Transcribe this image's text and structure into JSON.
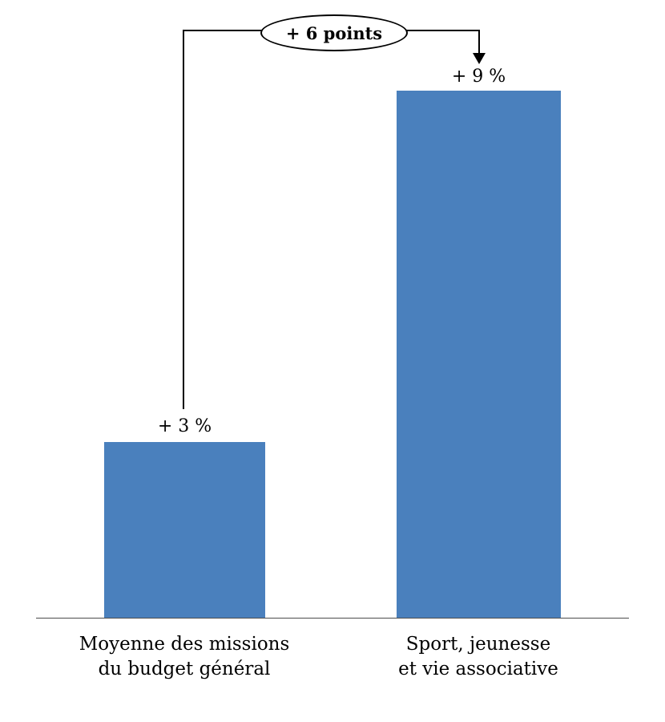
{
  "chart_data": {
    "type": "bar",
    "categories": [
      "Moyenne des missions\ndu budget général",
      "Sport, jeunesse\net vie associative"
    ],
    "values": [
      3,
      9
    ],
    "value_labels": [
      "+ 3 %",
      "+ 9 %"
    ],
    "annotation": "+ 6 points",
    "bar_color": "#4a80bd",
    "title": "",
    "xlabel": "",
    "ylabel": "",
    "ylim": [
      0,
      9
    ],
    "grid": false,
    "legend": "none"
  }
}
